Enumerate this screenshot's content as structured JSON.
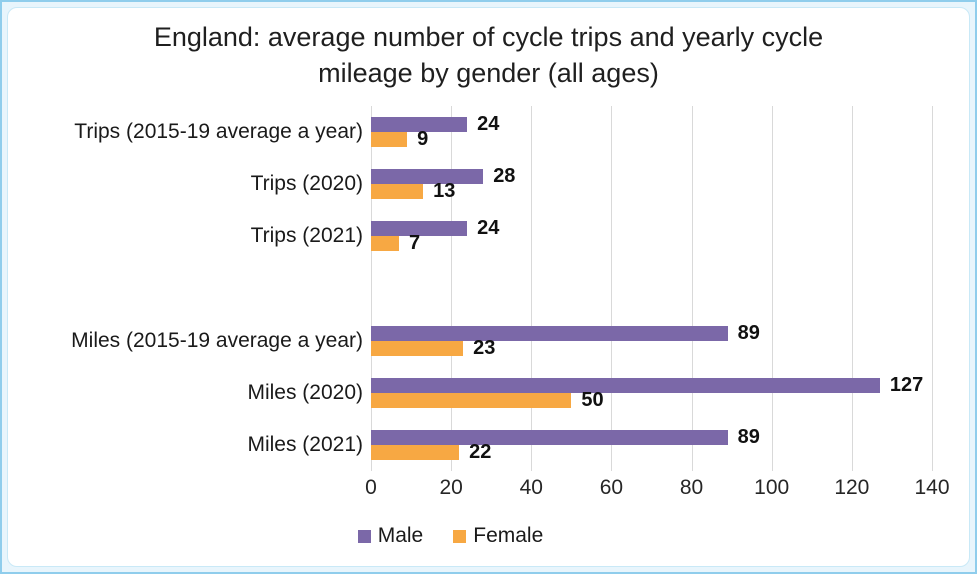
{
  "chart_data": {
    "type": "bar",
    "orientation": "horizontal",
    "title": "England: average number of cycle trips and yearly cycle mileage by gender (all ages)",
    "categories": [
      "Trips (2015-19 average a year)",
      "Trips (2020)",
      "Trips (2021)",
      "",
      "Miles (2015-19 average a year)",
      "Miles (2020)",
      "Miles (2021)"
    ],
    "series": [
      {
        "name": "Male",
        "color": "#7B68A8",
        "values": [
          24,
          28,
          24,
          null,
          89,
          127,
          89
        ]
      },
      {
        "name": "Female",
        "color": "#F7A843",
        "values": [
          9,
          13,
          7,
          null,
          23,
          50,
          22
        ]
      }
    ],
    "xlim": [
      0,
      140
    ],
    "xticks": [
      0,
      20,
      40,
      60,
      80,
      100,
      120,
      140
    ],
    "grid": "vertical",
    "gridline_color": "#D9D9D9",
    "data_labels": true,
    "legend_position": "bottom"
  }
}
